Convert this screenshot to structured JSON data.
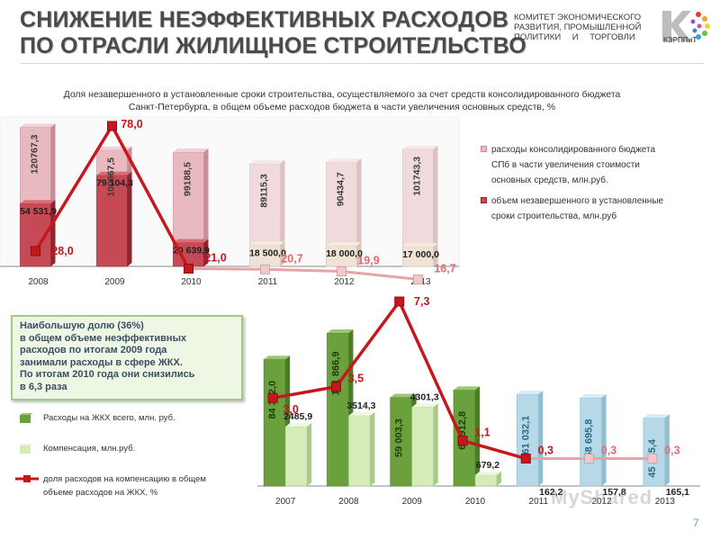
{
  "slide": {
    "title_line1": "СНИЖЕНИЕ НЕЭФФЕКТИВНЫХ РАСХОДОВ",
    "title_line2": "ПО ОТРАСЛИ ЖИЛИЩНОЕ СТРОИТЕЛЬСТВО",
    "org_line1": "КОМИТЕТ ЭКОНОМИЧЕСКОГО",
    "org_line2": "РАЗВИТИЯ, ПРОМЫШЛЕННОЙ",
    "org_line3": "ПОЛИТИКИ И ТОРГОВЛИ",
    "logo_text": "КЭРППиТ",
    "page_number": "7",
    "watermark": "MyShared"
  },
  "chart1_text": {
    "title_line1": "Доля незавершенного в установленные сроки строительства, осуществляемого за счет средств консолидированного бюджета",
    "title_line2": "Санкт-Петербурга, в общем объеме расходов бюджета в части увеличения основных средств, %",
    "legend_item1_line1": "расходы консолидированного бюджета",
    "legend_item1_line2": "СПб в части увеличения стоимости",
    "legend_item1_line3": "основных средств, млн.руб.",
    "legend_item2_line1": "объем незавершенного в установленные",
    "legend_item2_line2": "сроки строительства, млн.руб"
  },
  "callout": {
    "line1": "Наибольшую долю (36%)",
    "line2": "в общем объеме неэффективных",
    "line3": "расходов по итогам 2009 года",
    "line4": "занимали расходы в сфере ЖКХ.",
    "line5": "По итогам 2010 года они снизились",
    "line6": "в 6,3 раза"
  },
  "chart2_text": {
    "legend_item1": "Расходы на ЖКХ всего, млн. руб.",
    "legend_item2": "Компенсация, млн.руб.",
    "legend_item3_line1": "доля расходов на компенсацию в общем",
    "legend_item3_line2": "объеме расходов на ЖКХ, %"
  },
  "colors": {
    "title": "#4a4a4a",
    "total_bar": "#e8b9bf",
    "unfinished_bar": "#c64a55",
    "share_line": "#c8161d",
    "share_line_faded": "#e5a4a8",
    "zhkh_bar": "#6aa13c",
    "zhkh_bar_faded": "#b7d8e6",
    "compensation_bar": "#d7ebb8",
    "callout_border": "#a4c980",
    "callout_text": "#3a4e66"
  },
  "chart_data": [
    {
      "type": "bar",
      "categories": [
        "2008",
        "2009",
        "2010",
        "2011",
        "2012",
        "2013"
      ],
      "series": [
        {
          "name": "расходы консолидированного бюджета СПб в части увеличения стоимости основных средств, млн.руб.",
          "values": [
            120767.3,
            100967.5,
            99188.5,
            89115.3,
            90434.7,
            101743.3
          ],
          "labels": [
            "120767,3",
            "100967,5",
            "99188,5",
            "89115,3",
            "90434,7",
            "101743,3"
          ]
        },
        {
          "name": "объем незавершенного в установленные сроки строительства, млн.руб",
          "values": [
            54531.9,
            79104.3,
            20639.9,
            18500.0,
            18000.0,
            17000.0
          ],
          "labels": [
            "54 531,9",
            "79 104,3",
            "20 639,9",
            "18 500,0",
            "18 000,0",
            "17 000,0"
          ]
        },
        {
          "name": "",
          "type": "line",
          "values": [
            28.0,
            78.0,
            21.0,
            20.7,
            19.9,
            16.7
          ],
          "labels": [
            "28,0",
            "78,0",
            "21,0",
            "20,7",
            "19,9",
            "16,7"
          ]
        }
      ]
    },
    {
      "type": "bar",
      "categories": [
        "2007",
        "2008",
        "2009",
        "2010",
        "2011",
        "2012",
        "2013"
      ],
      "series": [
        {
          "name": "Расходы на ЖКХ всего, млн. руб.",
          "values": [
            84342.0,
            101866.9,
            59003.3,
            63912.8,
            61032.1,
            58695.8,
            45315.4
          ],
          "labels": [
            "84 342,0",
            "101 866,9",
            "59 003,3",
            "63 912,8",
            "61 032,1",
            "58 695,8",
            "45 315,4"
          ]
        },
        {
          "name": "Компенсация, млн.руб.",
          "values": [
            2485.9,
            3514.3,
            4301.3,
            679.2,
            162.2,
            157.8,
            165.1
          ],
          "labels": [
            "2485,9",
            "3514,3",
            "4301,3",
            "679,2",
            "162,2",
            "157,8",
            "165,1"
          ]
        },
        {
          "name": "доля расходов на компенсацию в общем объеме расходов на ЖКХ, %",
          "type": "line",
          "values": [
            3.0,
            3.5,
            7.3,
            1.1,
            0.3,
            0.3,
            0.3
          ],
          "labels": [
            "3,0",
            "3,5",
            "7,3",
            "1,1",
            "0,3",
            "0,3",
            "0,3"
          ]
        }
      ]
    }
  ]
}
